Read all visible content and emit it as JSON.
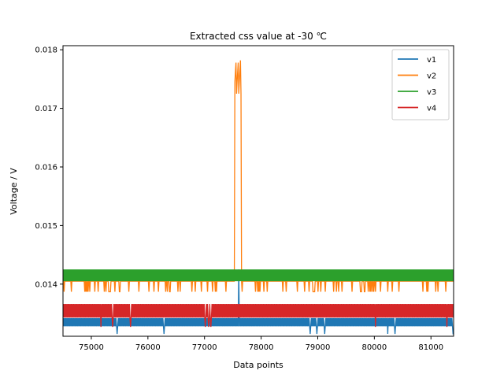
{
  "chart_data": {
    "type": "line",
    "title": "Extracted css value at -30 ℃",
    "xlabel": "Data points",
    "ylabel": "Voltage / V",
    "xlim": [
      74500,
      81400
    ],
    "ylim": [
      0.01311,
      0.01807
    ],
    "x_ticks": [
      75000,
      76000,
      77000,
      78000,
      79000,
      80000,
      81000
    ],
    "x_tick_labels": [
      "75000",
      "76000",
      "77000",
      "78000",
      "79000",
      "80000",
      "81000"
    ],
    "y_ticks": [
      0.014,
      0.015,
      0.016,
      0.017,
      0.018
    ],
    "y_tick_labels": [
      "0.014",
      "0.015",
      "0.016",
      "0.017",
      "0.018"
    ],
    "grid": false,
    "legend_position": "top-right",
    "series": [
      {
        "name": "v1",
        "color": "#1f77b4",
        "base_range": [
          0.01328,
          0.01342
        ],
        "notes_low": 0.01315,
        "spike": {
          "x": 77600,
          "peak": 0.01425
        }
      },
      {
        "name": "v2",
        "color": "#ff7f0e",
        "base_value": 0.01405,
        "dip_to": 0.01387,
        "spike": {
          "x_start": 77530,
          "x_end": 77650,
          "peak": 0.01782,
          "plateau": [
            0.01745,
            0.01762,
            0.01778,
            0.01725
          ]
        }
      },
      {
        "name": "v3",
        "color": "#2ca02c",
        "base_range": [
          0.01405,
          0.01425
        ]
      },
      {
        "name": "v4",
        "color": "#d62728",
        "base_range": [
          0.01343,
          0.01366
        ],
        "dip_to": 0.01327
      }
    ]
  }
}
